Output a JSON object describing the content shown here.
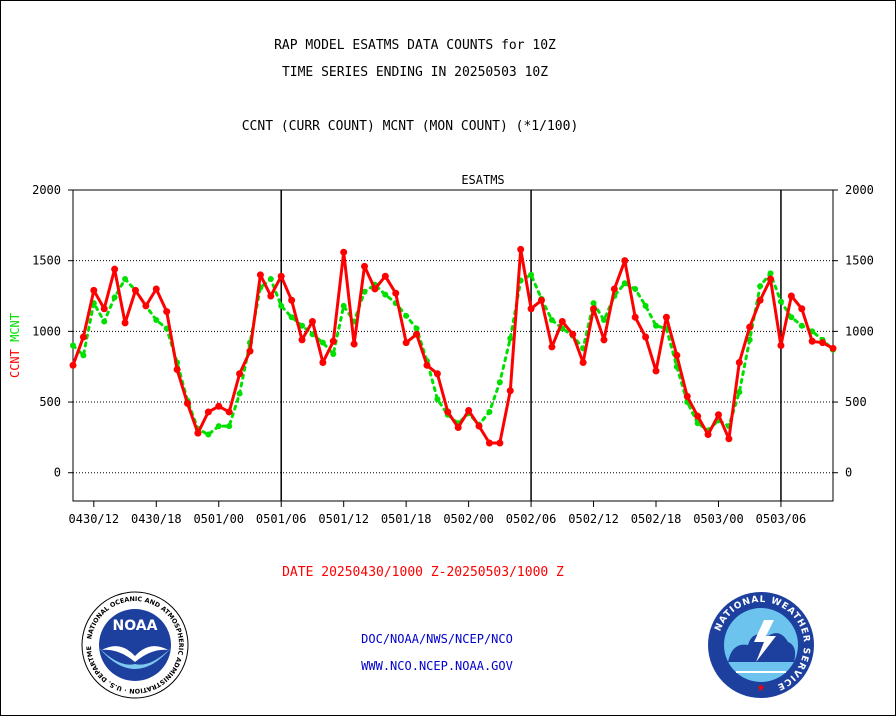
{
  "header": {
    "title_line1": "RAP MODEL ESATMS DATA COUNTS for 10Z",
    "title_line2": "TIME SERIES ENDING IN 20250503 10Z",
    "subtitle": "CCNT (CURR COUNT) MCNT (MON COUNT) (*1/100)"
  },
  "chart_data": {
    "type": "line",
    "title": "ESATMS",
    "ylabel_left": [
      "CCNT",
      "MCNT"
    ],
    "ylim": [
      -200,
      2000
    ],
    "yticks": [
      0,
      500,
      1000,
      1500,
      2000
    ],
    "ytick_labels": [
      "0",
      "500",
      "1000",
      "1500",
      "2000"
    ],
    "xlim": [
      0,
      73
    ],
    "xticks": [
      2,
      8,
      14,
      20,
      26,
      32,
      38,
      44,
      50,
      56,
      62,
      68
    ],
    "xtick_labels": [
      "0430/12",
      "0430/18",
      "0501/00",
      "0501/06",
      "0501/12",
      "0501/18",
      "0502/00",
      "0502/06",
      "0502/12",
      "0502/18",
      "0503/00",
      "0503/06"
    ],
    "day_boundaries": [
      20,
      44,
      68
    ],
    "grid": true,
    "colors": {
      "CCNT": "#ff0000",
      "MCNT": "#00e000"
    },
    "series": [
      {
        "name": "CCNT",
        "color": "#ff0000",
        "x": [
          0,
          1,
          2,
          3,
          4,
          5,
          6,
          7,
          8,
          9,
          10,
          11,
          12,
          13,
          14,
          15,
          16,
          17,
          18,
          19,
          20,
          21,
          22,
          23,
          24,
          25,
          26,
          27,
          28,
          29,
          30,
          31,
          32,
          33,
          34,
          35,
          36,
          37,
          38,
          39,
          40,
          41,
          42,
          43,
          44,
          45,
          46,
          47,
          48,
          49,
          50,
          51,
          52,
          53,
          54,
          55,
          56,
          57,
          58,
          59,
          60,
          61,
          62,
          63,
          64,
          65,
          66,
          67,
          68,
          69,
          70,
          71,
          72,
          73
        ],
        "values": [
          760,
          960,
          1290,
          1160,
          1440,
          1060,
          1290,
          1180,
          1300,
          1140,
          730,
          490,
          280,
          430,
          470,
          430,
          700,
          860,
          1400,
          1250,
          1390,
          1220,
          940,
          1070,
          780,
          930,
          1560,
          910,
          1460,
          1300,
          1390,
          1270,
          920,
          980,
          760,
          700,
          430,
          320,
          440,
          330,
          210,
          210,
          580,
          1580,
          1160,
          1220,
          890,
          1070,
          980,
          780,
          1160,
          940,
          1300,
          1500,
          1100,
          960,
          720,
          1100,
          830,
          540,
          400,
          270,
          410,
          240,
          780,
          1030,
          1220,
          1370,
          900,
          1250,
          1160,
          930,
          920,
          880
        ]
      },
      {
        "name": "MCNT",
        "color": "#00e000",
        "x": [
          0,
          1,
          2,
          3,
          4,
          5,
          6,
          7,
          8,
          9,
          10,
          11,
          12,
          13,
          14,
          15,
          16,
          17,
          18,
          19,
          20,
          21,
          22,
          23,
          24,
          25,
          26,
          27,
          28,
          29,
          30,
          31,
          32,
          33,
          34,
          35,
          36,
          37,
          38,
          39,
          40,
          41,
          42,
          43,
          44,
          45,
          46,
          47,
          48,
          49,
          50,
          51,
          52,
          53,
          54,
          55,
          56,
          57,
          58,
          59,
          60,
          61,
          62,
          63,
          64,
          65,
          66,
          67,
          68,
          69,
          70,
          71,
          72,
          73
        ],
        "values": [
          900,
          830,
          1200,
          1070,
          1240,
          1370,
          1290,
          1180,
          1080,
          1020,
          780,
          510,
          310,
          270,
          330,
          330,
          560,
          920,
          1310,
          1370,
          1180,
          1100,
          1040,
          980,
          920,
          840,
          1180,
          1070,
          1280,
          1330,
          1260,
          1200,
          1110,
          1020,
          790,
          520,
          410,
          350,
          420,
          340,
          430,
          640,
          950,
          1360,
          1400,
          1230,
          1080,
          1020,
          970,
          880,
          1200,
          1080,
          1250,
          1340,
          1300,
          1180,
          1040,
          1020,
          750,
          500,
          350,
          300,
          370,
          330,
          570,
          940,
          1320,
          1410,
          1210,
          1100,
          1040,
          1000,
          940,
          870
        ]
      }
    ]
  },
  "footer": {
    "date_range": "DATE 20250430/1000 Z-20250503/1000 Z",
    "link1": "DOC/NOAA/NWS/NCEP/NCO",
    "link2": "WWW.NCO.NCEP.NOAA.GOV",
    "noaa_logo_text": "NOAA",
    "noaa_ring_text": "NATIONAL OCEANIC AND ATMOSPHERIC ADMINISTRATION · U.S. DEPARTMENT OF COMMERCE",
    "nws_ring_text": "NATIONAL WEATHER SERVICE"
  }
}
